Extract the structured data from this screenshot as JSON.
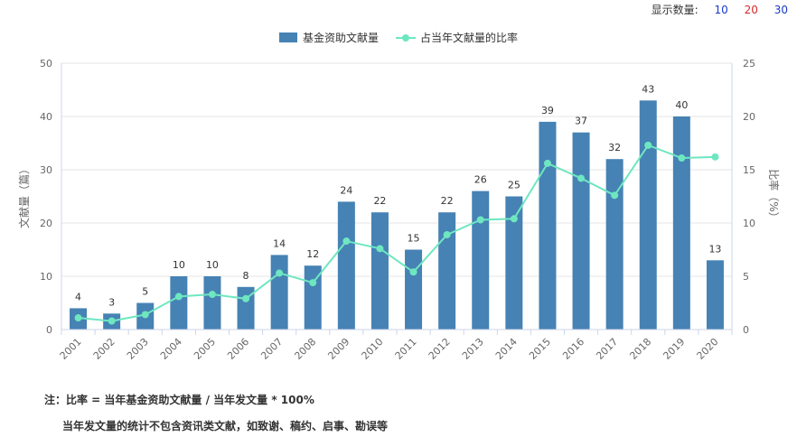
{
  "display_count": {
    "label": "显示数量:",
    "options": [
      {
        "label": "10",
        "color": "#1a3acb"
      },
      {
        "label": "20",
        "color": "#d42a2a"
      },
      {
        "label": "30",
        "color": "#1a3acb"
      }
    ]
  },
  "chart_data": {
    "type": "bar",
    "categories": [
      "2001",
      "2002",
      "2003",
      "2004",
      "2005",
      "2006",
      "2007",
      "2008",
      "2009",
      "2010",
      "2011",
      "2012",
      "2013",
      "2014",
      "2015",
      "2016",
      "2017",
      "2018",
      "2019",
      "2020"
    ],
    "series": [
      {
        "name": "基金资助文献量",
        "type": "bar",
        "axis": "left",
        "color": "#4682b4",
        "values": [
          4,
          3,
          5,
          10,
          10,
          8,
          14,
          12,
          24,
          22,
          15,
          22,
          26,
          25,
          39,
          37,
          32,
          43,
          40,
          13
        ]
      },
      {
        "name": "占当年文献量的比率",
        "type": "line",
        "axis": "right",
        "color": "#6ee7c0",
        "values": [
          1.1,
          0.8,
          1.4,
          3.1,
          3.3,
          2.9,
          5.3,
          4.4,
          8.3,
          7.6,
          5.4,
          8.9,
          10.3,
          10.4,
          15.6,
          14.2,
          12.6,
          17.3,
          16.1,
          16.2
        ]
      }
    ],
    "ylabel": "文献量（篇）",
    "ylabel_right": "比率（%）",
    "ylim": [
      0,
      50
    ],
    "yticks": [
      0,
      10,
      20,
      30,
      40,
      50
    ],
    "ylim_right": [
      0,
      25
    ],
    "yticks_right": [
      0,
      5,
      10,
      15,
      20,
      25
    ],
    "grid": true,
    "legend": "top-center"
  },
  "notes": {
    "line1": "注：比率 = 当年基金资助文献量 / 当年发文量 * 100%",
    "line2": "当年发文量的统计不包含资讯类文献，如致谢、稿约、启事、勘误等"
  }
}
